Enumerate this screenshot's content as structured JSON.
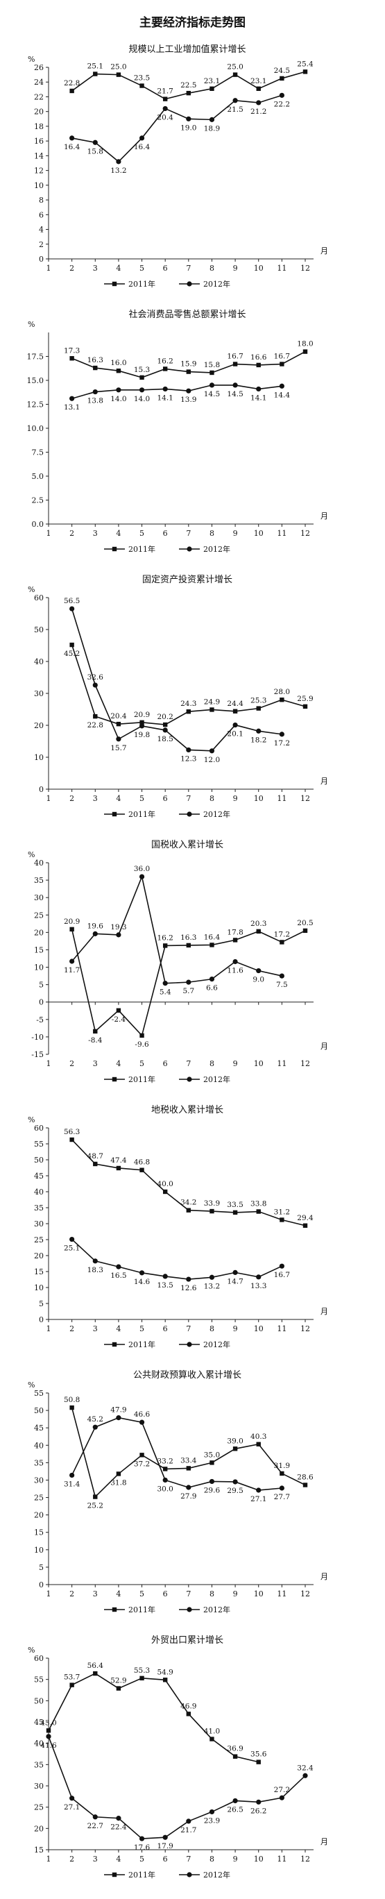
{
  "page_title": "主要经济指标走势图",
  "legend_2011": "2011年",
  "legend_2012": "2012年",
  "chart_data": [
    {
      "type": "line",
      "title": "规模以上工业增加值累计增长",
      "ylabel_unit": "%",
      "xlabel_unit": "月",
      "ylim": [
        0,
        26
      ],
      "yticks": [
        0,
        2,
        4,
        6,
        8,
        10,
        12,
        14,
        16,
        18,
        20,
        22,
        24,
        26
      ],
      "x": [
        1,
        2,
        3,
        4,
        5,
        6,
        7,
        8,
        9,
        10,
        11,
        12
      ],
      "series": [
        {
          "name": "2011年",
          "x": [
            2,
            3,
            4,
            5,
            6,
            7,
            8,
            9,
            10,
            11,
            12
          ],
          "values": [
            22.8,
            25.1,
            25.0,
            23.5,
            21.7,
            22.5,
            23.1,
            25.0,
            23.1,
            24.5,
            25.4
          ]
        },
        {
          "name": "2012年",
          "x": [
            2,
            3,
            4,
            5,
            6,
            7,
            8,
            9,
            10,
            11
          ],
          "values": [
            16.4,
            15.8,
            13.2,
            16.4,
            20.4,
            19.0,
            18.9,
            21.5,
            21.2,
            22.2
          ]
        }
      ]
    },
    {
      "type": "line",
      "title": "社会消费品零售总额累计增长",
      "ylabel_unit": "%",
      "xlabel_unit": "月",
      "ylim": [
        0,
        20
      ],
      "yticks": [
        0.0,
        2.5,
        5.0,
        7.5,
        10.0,
        12.5,
        15.0,
        17.5
      ],
      "ytick_labels": [
        "0.0",
        "2.5",
        "5.0",
        "7.5",
        "10.0",
        "12.5",
        "15.0",
        "17.5"
      ],
      "x": [
        1,
        2,
        3,
        4,
        5,
        6,
        7,
        8,
        9,
        10,
        11,
        12
      ],
      "series": [
        {
          "name": "2011年",
          "x": [
            2,
            3,
            4,
            5,
            6,
            7,
            8,
            9,
            10,
            11,
            12
          ],
          "values": [
            17.3,
            16.3,
            16.0,
            15.3,
            16.2,
            15.9,
            15.8,
            16.7,
            16.6,
            16.7,
            18.0
          ]
        },
        {
          "name": "2012年",
          "x": [
            2,
            3,
            4,
            5,
            6,
            7,
            8,
            9,
            10,
            11
          ],
          "values": [
            13.1,
            13.8,
            14.0,
            14.0,
            14.1,
            13.9,
            14.5,
            14.5,
            14.1,
            14.4
          ]
        }
      ]
    },
    {
      "type": "line",
      "title": "固定资产投资累计增长",
      "ylabel_unit": "%",
      "xlabel_unit": "月",
      "ylim": [
        0,
        60
      ],
      "yticks": [
        0,
        10,
        20,
        30,
        40,
        50,
        60
      ],
      "x": [
        1,
        2,
        3,
        4,
        5,
        6,
        7,
        8,
        9,
        10,
        11,
        12
      ],
      "series": [
        {
          "name": "2011年",
          "x": [
            2,
            3,
            4,
            5,
            6,
            7,
            8,
            9,
            10,
            11,
            12
          ],
          "values": [
            45.2,
            22.8,
            20.4,
            20.9,
            20.2,
            24.3,
            24.9,
            24.4,
            25.3,
            28.0,
            25.9
          ]
        },
        {
          "name": "2012年",
          "x": [
            2,
            3,
            4,
            5,
            6,
            7,
            8,
            9,
            10,
            11
          ],
          "values": [
            56.5,
            32.6,
            15.7,
            19.8,
            18.5,
            12.3,
            12.0,
            20.1,
            18.2,
            17.2
          ]
        }
      ]
    },
    {
      "type": "line",
      "title": "国税收入累计增长",
      "ylabel_unit": "%",
      "xlabel_unit": "月",
      "ylim": [
        -15,
        40
      ],
      "yticks": [
        -15,
        -10,
        -5,
        0,
        5,
        10,
        15,
        20,
        25,
        30,
        35,
        40
      ],
      "x": [
        1,
        2,
        3,
        4,
        5,
        6,
        7,
        8,
        9,
        10,
        11,
        12
      ],
      "series": [
        {
          "name": "2011年",
          "x": [
            2,
            3,
            4,
            5,
            6,
            7,
            8,
            9,
            10,
            11,
            12
          ],
          "values": [
            20.9,
            -8.4,
            -2.4,
            -9.6,
            16.2,
            16.3,
            16.4,
            17.8,
            20.3,
            17.2,
            20.5
          ]
        },
        {
          "name": "2012年",
          "x": [
            2,
            3,
            4,
            5,
            6,
            7,
            8,
            9,
            10,
            11
          ],
          "values": [
            11.7,
            19.6,
            19.3,
            36.0,
            5.4,
            5.7,
            6.6,
            11.6,
            9.0,
            7.5
          ]
        }
      ]
    },
    {
      "type": "line",
      "title": "地税收入累计增长",
      "ylabel_unit": "%",
      "xlabel_unit": "月",
      "ylim": [
        0,
        60
      ],
      "yticks": [
        0,
        5,
        10,
        15,
        20,
        25,
        30,
        35,
        40,
        45,
        50,
        55,
        60
      ],
      "x": [
        1,
        2,
        3,
        4,
        5,
        6,
        7,
        8,
        9,
        10,
        11,
        12
      ],
      "series": [
        {
          "name": "2011年",
          "x": [
            2,
            3,
            4,
            5,
            6,
            7,
            8,
            9,
            10,
            11,
            12
          ],
          "values": [
            56.3,
            48.7,
            47.4,
            46.8,
            40.0,
            34.2,
            33.9,
            33.5,
            33.8,
            31.2,
            29.4
          ]
        },
        {
          "name": "2012年",
          "x": [
            2,
            3,
            4,
            5,
            6,
            7,
            8,
            9,
            10,
            11
          ],
          "values": [
            25.1,
            18.3,
            16.5,
            14.6,
            13.5,
            12.6,
            13.2,
            14.7,
            13.3,
            16.7
          ]
        }
      ]
    },
    {
      "type": "line",
      "title": "公共财政预算收入累计增长",
      "ylabel_unit": "%",
      "xlabel_unit": "月",
      "ylim": [
        0,
        55
      ],
      "yticks": [
        0,
        5,
        10,
        15,
        20,
        25,
        30,
        35,
        40,
        45,
        50,
        55
      ],
      "x": [
        1,
        2,
        3,
        4,
        5,
        6,
        7,
        8,
        9,
        10,
        11,
        12
      ],
      "series": [
        {
          "name": "2011年",
          "x": [
            2,
            3,
            4,
            5,
            6,
            7,
            8,
            9,
            10,
            11,
            12
          ],
          "values": [
            50.8,
            25.2,
            31.8,
            37.2,
            33.2,
            33.4,
            35.0,
            39.0,
            40.3,
            31.9,
            28.6
          ]
        },
        {
          "name": "2012年",
          "x": [
            2,
            3,
            4,
            5,
            6,
            7,
            8,
            9,
            10,
            11
          ],
          "values": [
            31.4,
            45.2,
            47.9,
            46.6,
            30.0,
            27.9,
            29.6,
            29.5,
            27.1,
            27.7
          ]
        }
      ]
    },
    {
      "type": "line",
      "title": "外贸出口累计增长",
      "ylabel_unit": "%",
      "xlabel_unit": "月",
      "ylim": [
        15,
        60
      ],
      "yticks": [
        15,
        20,
        25,
        30,
        35,
        40,
        45,
        50,
        55,
        60
      ],
      "x": [
        1,
        2,
        3,
        4,
        5,
        6,
        7,
        8,
        9,
        10,
        11,
        12
      ],
      "series": [
        {
          "name": "2011年",
          "x": [
            1,
            2,
            3,
            4,
            5,
            6,
            7,
            8,
            9,
            10
          ],
          "values": [
            43.0,
            53.7,
            56.4,
            52.9,
            55.3,
            54.9,
            46.9,
            41.0,
            36.9,
            35.6
          ]
        },
        {
          "name": "2012年",
          "x": [
            1,
            2,
            3,
            4,
            5,
            6,
            7,
            8,
            9,
            10,
            11,
            12
          ],
          "values": [
            41.6,
            27.1,
            22.7,
            22.4,
            17.6,
            17.9,
            21.7,
            23.9,
            26.5,
            26.2,
            27.2,
            32.4
          ]
        }
      ]
    }
  ]
}
